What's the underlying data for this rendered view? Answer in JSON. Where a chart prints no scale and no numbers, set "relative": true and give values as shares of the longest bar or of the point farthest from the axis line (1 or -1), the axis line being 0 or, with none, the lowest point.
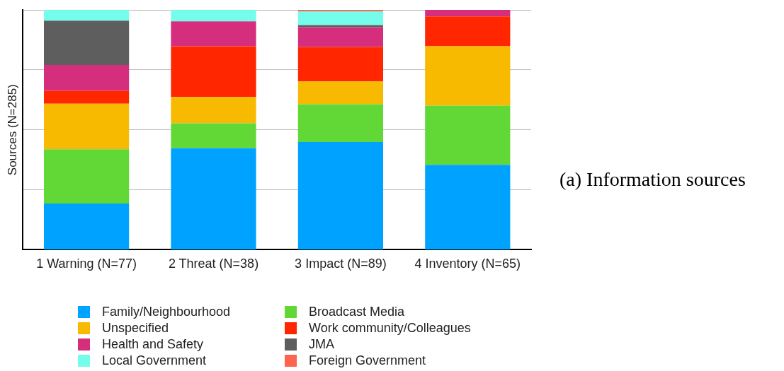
{
  "chart_data": {
    "type": "bar",
    "title": "(a) Information sources",
    "ylabel": "Sources (N=285)",
    "categories": [
      "1 Warning (N=77)",
      "2 Threat (N=38)",
      "3 Impact (N=89)",
      "4 Inventory (N=65)"
    ],
    "stacked": true,
    "relative": true,
    "grid": "y",
    "legend": "bottom",
    "series": [
      {
        "name": "Family/Neighbourhood",
        "color": "#00a2ff",
        "values": [
          0.193,
          0.423,
          0.449,
          0.354
        ]
      },
      {
        "name": "Broadcast Media",
        "color": "#61d836",
        "values": [
          0.226,
          0.104,
          0.158,
          0.247
        ]
      },
      {
        "name": "Unspecified",
        "color": "#f8ba00",
        "values": [
          0.19,
          0.11,
          0.095,
          0.247
        ]
      },
      {
        "name": "Work community/Colleagues",
        "color": "#ff2600",
        "values": [
          0.054,
          0.211,
          0.143,
          0.125
        ]
      },
      {
        "name": "Health and Safety",
        "color": "#d52e7d",
        "values": [
          0.107,
          0.104,
          0.083,
          0.027
        ]
      },
      {
        "name": "JMA",
        "color": "#5e5e5e",
        "values": [
          0.185,
          0,
          0.009,
          0
        ]
      },
      {
        "name": "Local Government",
        "color": "#73fdea",
        "values": [
          0.045,
          0.048,
          0.057,
          0
        ]
      },
      {
        "name": "Foreign Government",
        "color": "#ff644e",
        "values": [
          0,
          0,
          0.006,
          0
        ]
      }
    ]
  }
}
